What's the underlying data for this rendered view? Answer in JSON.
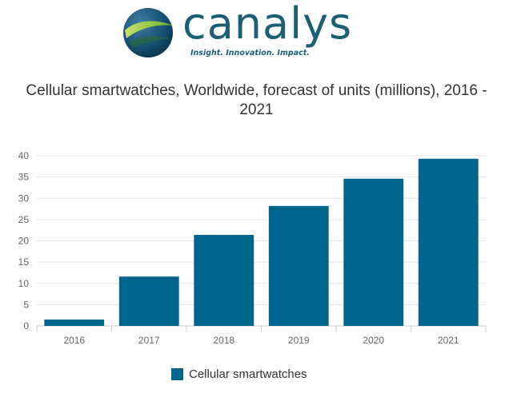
{
  "logo": {
    "wordmark": "canalys",
    "tagline": "Insight. Innovation. Impact."
  },
  "chart_data": {
    "type": "bar",
    "title_lines": [
      "Cellular smartwatches, Worldwide, forecast of units (millions), 2016 -",
      "2021"
    ],
    "categories": [
      "2016",
      "2017",
      "2018",
      "2019",
      "2020",
      "2021"
    ],
    "series": [
      {
        "name": "Cellular smartwatches",
        "values": [
          1.5,
          11.6,
          21.4,
          28.2,
          34.6,
          39.3
        ]
      }
    ],
    "ylim": [
      0,
      40
    ],
    "yticks": [
      0,
      5,
      10,
      15,
      20,
      25,
      30,
      35,
      40
    ],
    "grid": true,
    "legend": "bottom",
    "colors": {
      "bar": "#00648c",
      "grid": "#e6e6e6",
      "axis": "#cccccc"
    }
  }
}
